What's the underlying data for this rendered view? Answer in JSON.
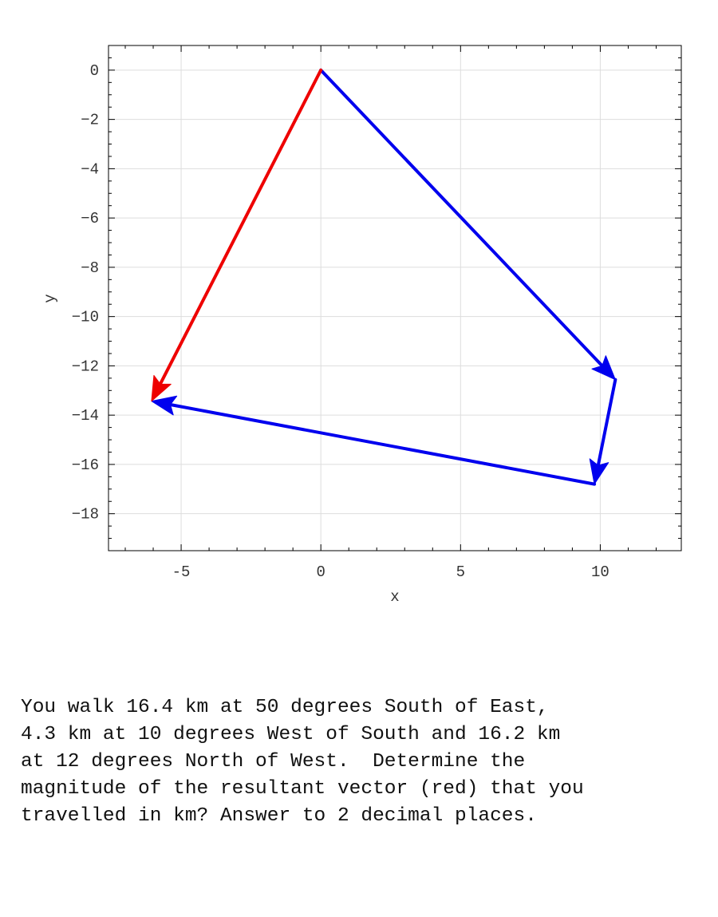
{
  "chart_data": {
    "type": "vector-diagram",
    "xlabel": "x",
    "ylabel": "y",
    "xlim": [
      -7.6,
      12.9
    ],
    "ylim": [
      -19.5,
      1.0
    ],
    "xticks": [
      -5,
      0,
      5,
      10
    ],
    "yticks": [
      0,
      -2,
      -4,
      -6,
      -8,
      -10,
      -12,
      -14,
      -16,
      -18
    ],
    "grid": true,
    "colors": {
      "component": "#0000ee",
      "resultant": "#ee0000"
    },
    "vectors": [
      {
        "kind": "component",
        "from": [
          0,
          0
        ],
        "to": [
          10.54,
          -12.56
        ]
      },
      {
        "kind": "component",
        "from": [
          10.54,
          -12.56
        ],
        "to": [
          9.79,
          -16.8
        ]
      },
      {
        "kind": "component",
        "from": [
          9.79,
          -16.8
        ],
        "to": [
          -6.06,
          -13.43
        ]
      },
      {
        "kind": "resultant",
        "from": [
          0,
          0
        ],
        "to": [
          -6.06,
          -13.43
        ]
      }
    ]
  },
  "question": {
    "text": "You walk 16.4 km at 50 degrees South of East,\n4.3 km at 10 degrees West of South and 16.2 km\nat 12 degrees North of West.  Determine the\nmagnitude of the resultant vector (red) that you\ntravelled in km? Answer to 2 decimal places."
  }
}
